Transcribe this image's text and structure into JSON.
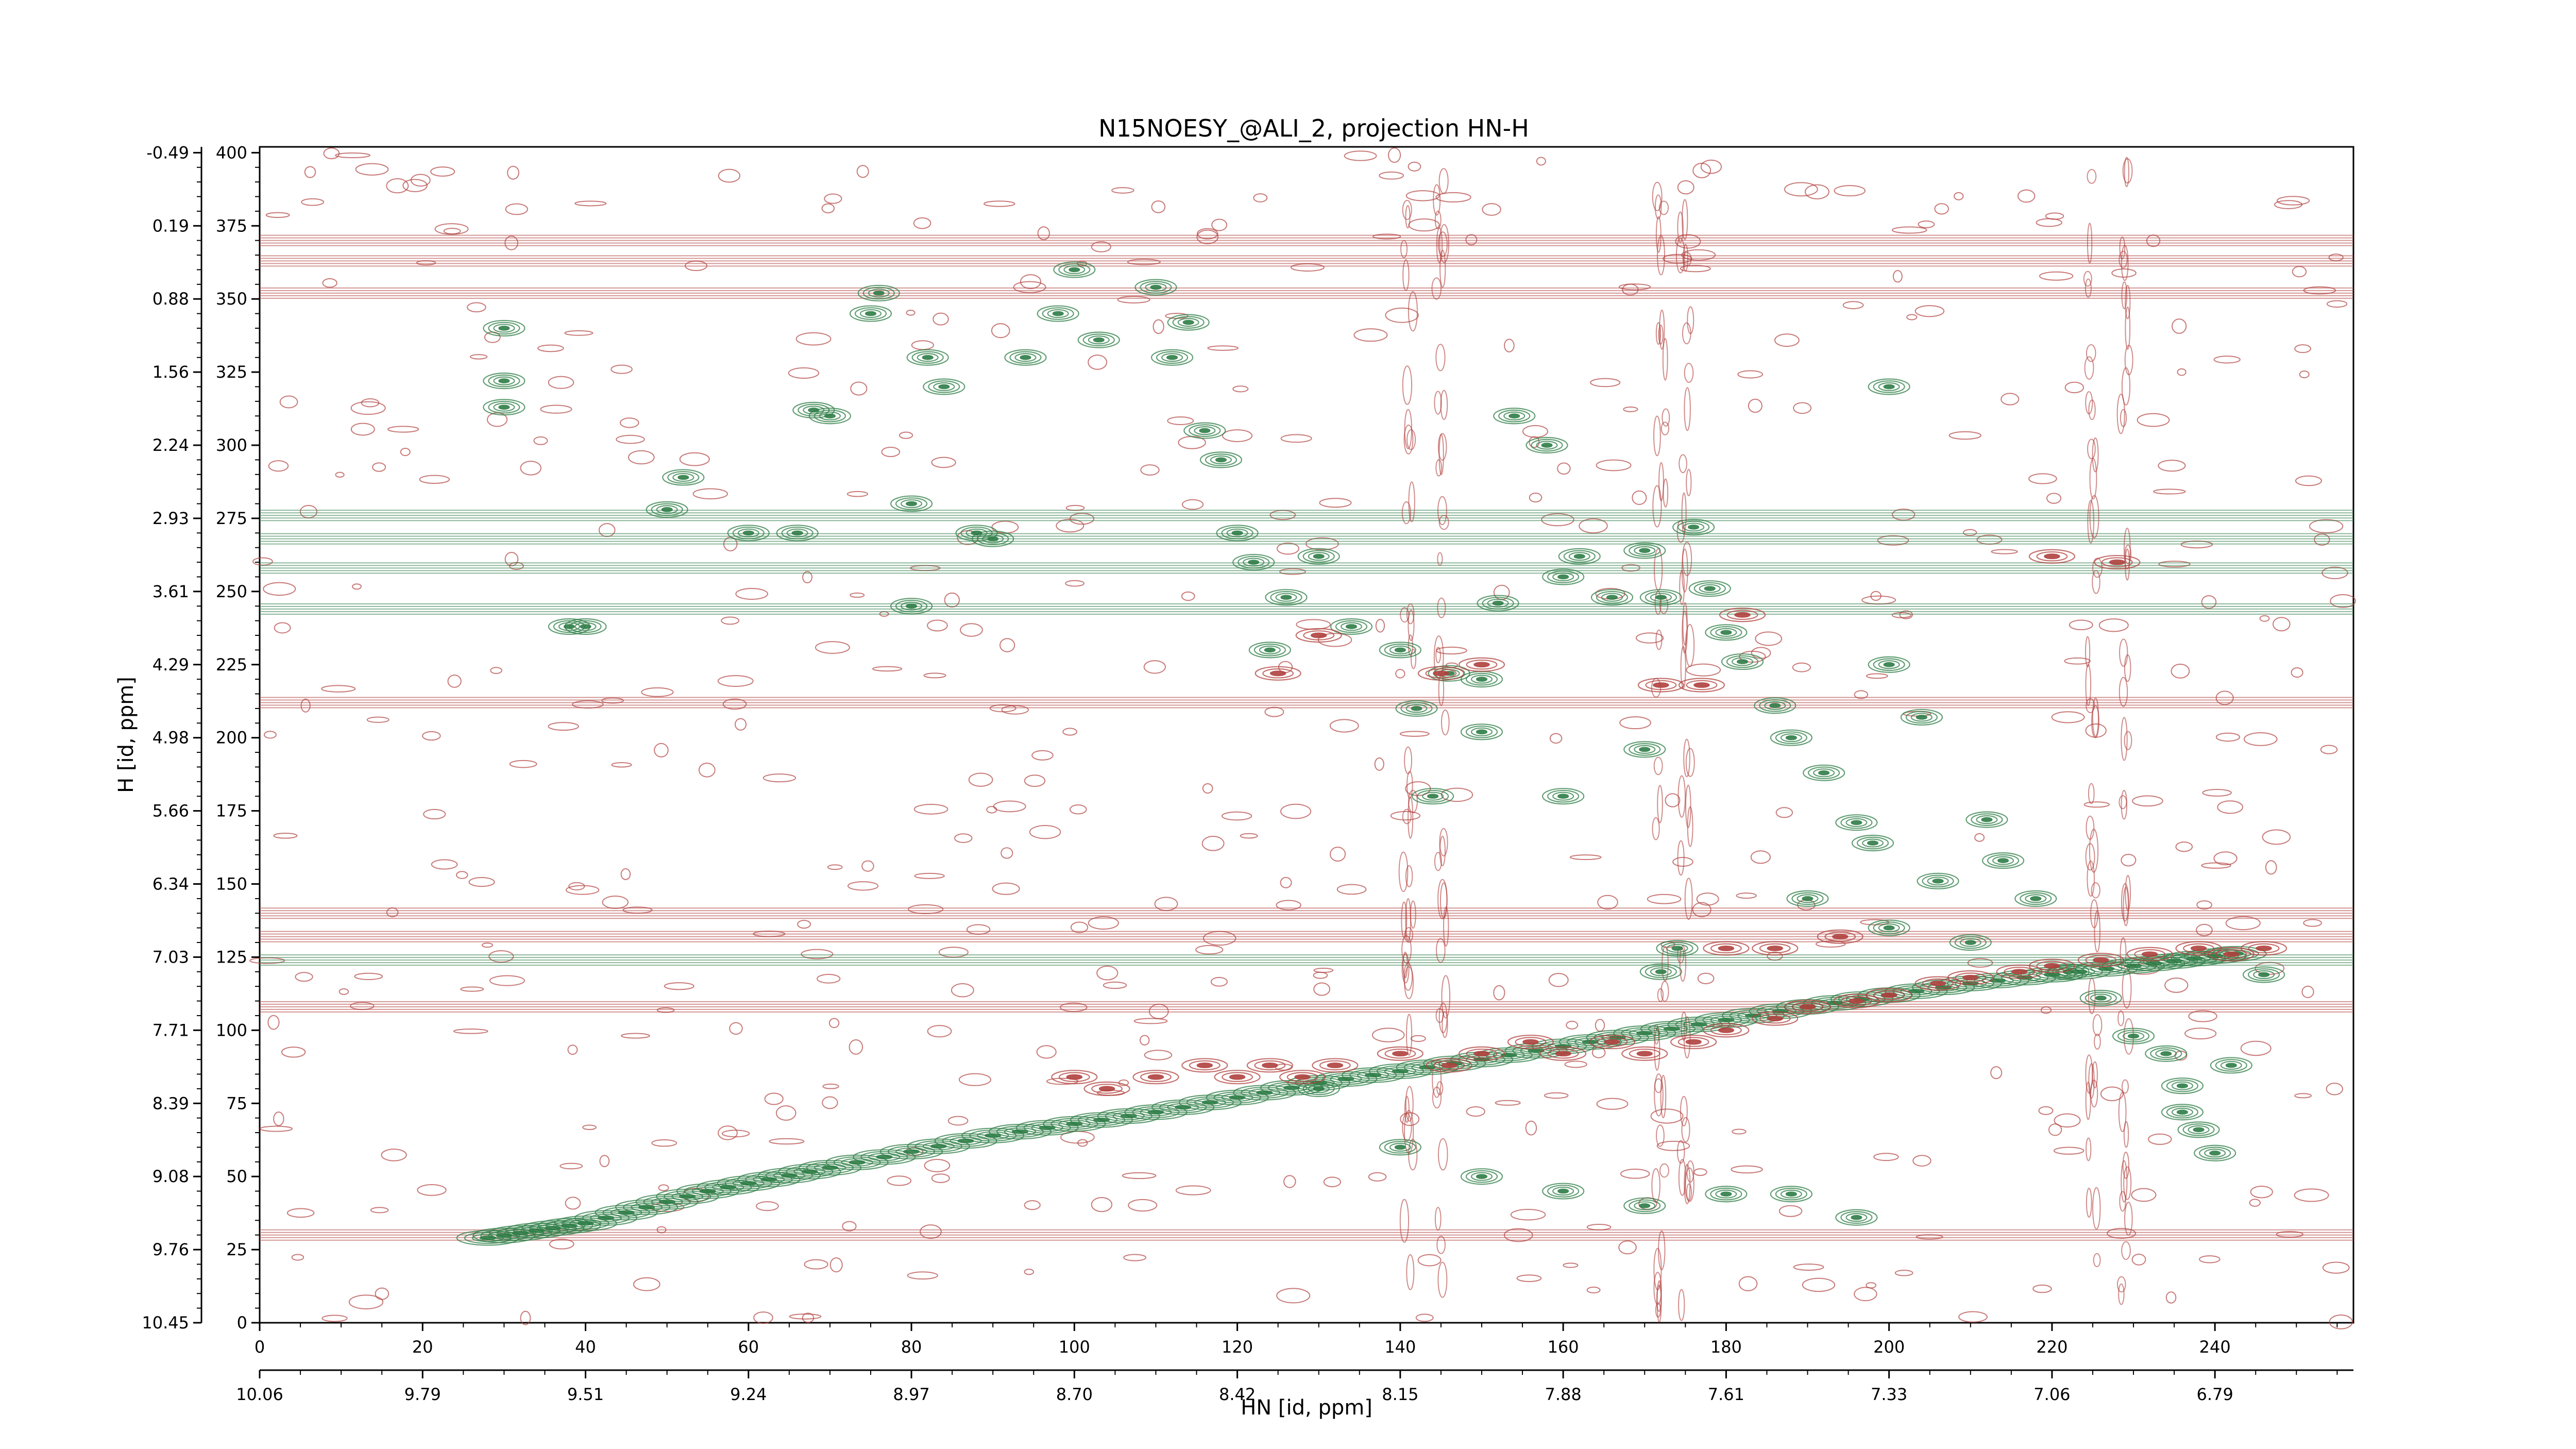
{
  "chart_data": {
    "type": "contour",
    "title": "N15NOESY_@ALI_2, projection HN-H",
    "xlabel": "HN [id, ppm]",
    "ylabel": "H [id, ppm]",
    "x_index_range": [
      0,
      257
    ],
    "y_index_range": [
      0,
      402
    ],
    "x_index_ticks": [
      "0",
      "20",
      "40",
      "60",
      "80",
      "100",
      "120",
      "140",
      "160",
      "180",
      "200",
      "220",
      "240"
    ],
    "x_ppm_ticks": [
      "10.06",
      "9.79",
      "9.51",
      "9.24",
      "8.97",
      "8.70",
      "8.42",
      "8.15",
      "7.88",
      "7.61",
      "7.33",
      "7.06",
      "6.79"
    ],
    "y_index_ticks": [
      "0",
      "25",
      "50",
      "75",
      "100",
      "125",
      "150",
      "175",
      "200",
      "225",
      "250",
      "275",
      "300",
      "325",
      "350",
      "375",
      "400"
    ],
    "y_ppm_ticks": [
      "10.45",
      "9.76",
      "9.08",
      "8.39",
      "7.71",
      "7.03",
      "6.34",
      "5.66",
      "4.98",
      "4.29",
      "3.61",
      "2.93",
      "2.24",
      "1.56",
      "0.88",
      "0.19",
      "-0.49"
    ],
    "series": [
      {
        "name": "positive",
        "color": "#2e7d46"
      },
      {
        "name": "negative",
        "color": "#b0413e"
      }
    ],
    "diagonal": [
      [
        28,
        29
      ],
      [
        40,
        34
      ],
      [
        55,
        45
      ],
      [
        70,
        53
      ],
      [
        90,
        64
      ],
      [
        110,
        72
      ],
      [
        130,
        82
      ],
      [
        150,
        90
      ],
      [
        170,
        99
      ],
      [
        190,
        108
      ],
      [
        210,
        116
      ],
      [
        230,
        122
      ],
      [
        245,
        127
      ]
    ],
    "green_peaks": [
      [
        30,
        340
      ],
      [
        30,
        322
      ],
      [
        30,
        313
      ],
      [
        38,
        238
      ],
      [
        40,
        238
      ],
      [
        50,
        278
      ],
      [
        52,
        289
      ],
      [
        60,
        270
      ],
      [
        66,
        270
      ],
      [
        68,
        312
      ],
      [
        70,
        310
      ],
      [
        75,
        345
      ],
      [
        76,
        352
      ],
      [
        80,
        245
      ],
      [
        80,
        280
      ],
      [
        82,
        330
      ],
      [
        84,
        320
      ],
      [
        88,
        270
      ],
      [
        90,
        268
      ],
      [
        94,
        330
      ],
      [
        98,
        345
      ],
      [
        100,
        360
      ],
      [
        103,
        336
      ],
      [
        110,
        354
      ],
      [
        112,
        330
      ],
      [
        114,
        342
      ],
      [
        116,
        305
      ],
      [
        118,
        295
      ],
      [
        120,
        270
      ],
      [
        122,
        260
      ],
      [
        124,
        230
      ],
      [
        126,
        248
      ],
      [
        130,
        262
      ],
      [
        134,
        238
      ],
      [
        140,
        230
      ],
      [
        142,
        210
      ],
      [
        144,
        180
      ],
      [
        146,
        222
      ],
      [
        150,
        220
      ],
      [
        152,
        246
      ],
      [
        154,
        310
      ],
      [
        158,
        300
      ],
      [
        160,
        255
      ],
      [
        162,
        262
      ],
      [
        166,
        248
      ],
      [
        170,
        264
      ],
      [
        172,
        248
      ],
      [
        176,
        272
      ],
      [
        178,
        251
      ],
      [
        180,
        236
      ],
      [
        182,
        226
      ],
      [
        186,
        211
      ],
      [
        188,
        200
      ],
      [
        192,
        188
      ],
      [
        196,
        171
      ],
      [
        198,
        164
      ],
      [
        200,
        320
      ],
      [
        200,
        225
      ],
      [
        204,
        207
      ],
      [
        206,
        151
      ],
      [
        212,
        172
      ],
      [
        214,
        158
      ],
      [
        218,
        145
      ],
      [
        222,
        120
      ],
      [
        226,
        111
      ],
      [
        230,
        98
      ],
      [
        234,
        92
      ],
      [
        236,
        72
      ],
      [
        236,
        81
      ],
      [
        238,
        66
      ],
      [
        240,
        58
      ],
      [
        242,
        88
      ],
      [
        246,
        119
      ],
      [
        150,
        202
      ],
      [
        160,
        180
      ],
      [
        170,
        196
      ],
      [
        190,
        145
      ],
      [
        200,
        135
      ],
      [
        210,
        130
      ],
      [
        130,
        80
      ],
      [
        140,
        60
      ],
      [
        150,
        50
      ],
      [
        160,
        45
      ],
      [
        170,
        40
      ],
      [
        180,
        44
      ],
      [
        188,
        44
      ],
      [
        196,
        36
      ],
      [
        172,
        120
      ],
      [
        174,
        128
      ]
    ],
    "red_peaks": [
      [
        125,
        222
      ],
      [
        130,
        235
      ],
      [
        145,
        222
      ],
      [
        150,
        225
      ],
      [
        172,
        218
      ],
      [
        177,
        218
      ],
      [
        182,
        242
      ],
      [
        220,
        262
      ],
      [
        228,
        260
      ],
      [
        180,
        128
      ],
      [
        186,
        128
      ],
      [
        194,
        132
      ],
      [
        100,
        84
      ],
      [
        104,
        80
      ],
      [
        110,
        84
      ],
      [
        116,
        88
      ],
      [
        120,
        84
      ],
      [
        124,
        88
      ],
      [
        128,
        84
      ],
      [
        132,
        88
      ],
      [
        140,
        92
      ],
      [
        146,
        88
      ],
      [
        150,
        92
      ],
      [
        156,
        96
      ],
      [
        160,
        92
      ],
      [
        166,
        96
      ],
      [
        170,
        92
      ],
      [
        176,
        96
      ],
      [
        180,
        100
      ],
      [
        186,
        104
      ],
      [
        190,
        108
      ],
      [
        196,
        110
      ],
      [
        200,
        112
      ],
      [
        206,
        116
      ],
      [
        210,
        118
      ],
      [
        216,
        120
      ],
      [
        220,
        122
      ],
      [
        226,
        124
      ],
      [
        232,
        126
      ],
      [
        238,
        128
      ],
      [
        242,
        126
      ],
      [
        246,
        128
      ]
    ],
    "horizontal_bands": [
      {
        "y": 370,
        "color": "red"
      },
      {
        "y": 363,
        "color": "red"
      },
      {
        "y": 352,
        "color": "red"
      },
      {
        "y": 268,
        "color": "green"
      },
      {
        "y": 276,
        "color": "green"
      },
      {
        "y": 258,
        "color": "green"
      },
      {
        "y": 244,
        "color": "green"
      },
      {
        "y": 212,
        "color": "red"
      },
      {
        "y": 140,
        "color": "red"
      },
      {
        "y": 132,
        "color": "red"
      },
      {
        "y": 124,
        "color": "green"
      },
      {
        "y": 108,
        "color": "red"
      },
      {
        "y": 30,
        "color": "red"
      }
    ],
    "vertical_bands": [
      {
        "x": 141,
        "color": "red"
      },
      {
        "x": 145,
        "color": "red"
      },
      {
        "x": 172,
        "color": "red"
      },
      {
        "x": 175,
        "color": "red"
      },
      {
        "x": 225,
        "color": "red"
      },
      {
        "x": 229,
        "color": "red"
      }
    ]
  }
}
